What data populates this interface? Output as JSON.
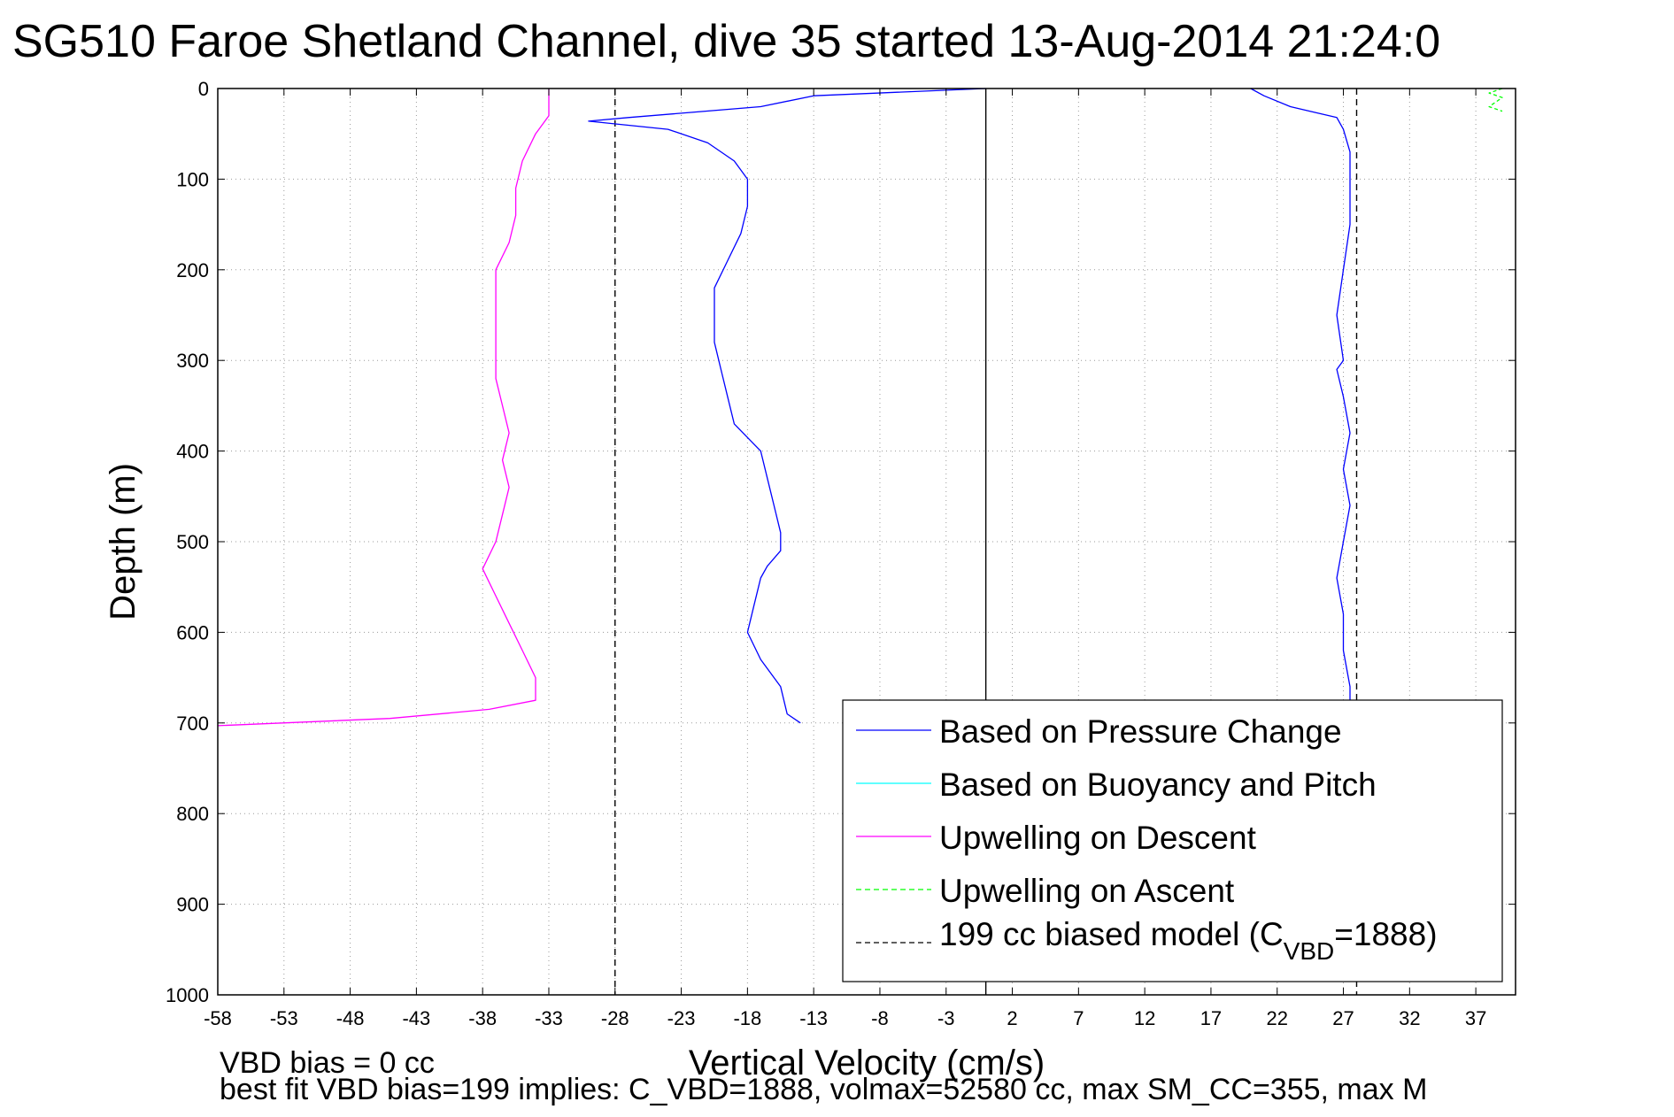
{
  "chart_data": {
    "type": "line",
    "title": "SG510 Faroe Shetland Channel, dive 35 started 13-Aug-2014 21:24:0",
    "xlabel": "Vertical Velocity (cm/s)",
    "ylabel": "Depth (m)",
    "xlim": [
      -58,
      40
    ],
    "ylim": [
      0,
      1000
    ],
    "y_reversed": true,
    "grid": true,
    "x_ticks": [
      "-58",
      "-53",
      "-48",
      "-43",
      "-38",
      "-33",
      "-28",
      "-23",
      "-18",
      "-13",
      "-8",
      "-3",
      "2",
      "7",
      "12",
      "17",
      "22",
      "27",
      "32",
      "37"
    ],
    "y_ticks": [
      "0",
      "100",
      "200",
      "300",
      "400",
      "500",
      "600",
      "700",
      "800",
      "900",
      "1000"
    ],
    "legend_position": "bottom-right",
    "legend": [
      {
        "label": "Based on Pressure Change",
        "color": "#0000ff",
        "style": "solid"
      },
      {
        "label": "Based on Buoyancy and Pitch",
        "color": "#00ffff",
        "style": "solid"
      },
      {
        "label": "Upwelling on Descent",
        "color": "#ff00ff",
        "style": "solid"
      },
      {
        "label": "Upwelling on Ascent",
        "color": "#00ff00",
        "style": "dashed"
      },
      {
        "label_main": "199 cc biased model (C",
        "label_sub": "VBD",
        "label_end": "=1888)",
        "color": "#000000",
        "style": "dashed"
      }
    ],
    "series": [
      {
        "color": "#0000ff",
        "depth": [
          0,
          8,
          20,
          32,
          36,
          45,
          60,
          80,
          100,
          130,
          160,
          190,
          220,
          250,
          280,
          310,
          340,
          370,
          400,
          430,
          460,
          490,
          510,
          527,
          540,
          570,
          600,
          630,
          660,
          690,
          700
        ],
        "values": [
          0,
          -13,
          -17,
          -27,
          -30,
          -24,
          -21,
          -19,
          -18,
          -18,
          -18.5,
          -19.5,
          -20.5,
          -20.5,
          -20.5,
          -20,
          -19.5,
          -19,
          -17,
          -16.5,
          -16,
          -15.5,
          -15.5,
          -16.5,
          -17,
          -17.5,
          -18,
          -17,
          -15.5,
          -15,
          -14
        ]
      },
      {
        "color": "#0000ff",
        "depth": [
          0,
          8,
          20,
          32,
          45,
          70,
          100,
          150,
          200,
          250,
          300,
          310,
          340,
          380,
          420,
          460,
          500,
          540,
          580,
          620,
          660,
          680
        ],
        "values": [
          20,
          21,
          23,
          26.5,
          27,
          27.5,
          27.5,
          27.5,
          27,
          26.5,
          27,
          26.5,
          27,
          27.5,
          27,
          27.5,
          27,
          26.5,
          27,
          27,
          27.5,
          27.5
        ]
      },
      {
        "color": "#ff00ff",
        "depth": [
          0,
          15,
          30,
          50,
          80,
          110,
          140,
          170,
          200,
          230,
          260,
          290,
          320,
          350,
          380,
          410,
          440,
          470,
          500,
          530,
          560,
          590,
          620,
          650,
          675,
          685,
          695,
          703
        ],
        "values": [
          -33,
          -33,
          -33,
          -34,
          -35,
          -35.5,
          -35.5,
          -36,
          -37,
          -37,
          -37,
          -37,
          -37,
          -36.5,
          -36,
          -36.5,
          -36,
          -36.5,
          -37,
          -38,
          -37,
          -36,
          -35,
          -34,
          -34,
          -37.5,
          -45,
          -58
        ]
      },
      {
        "color": "#00ff00",
        "depth": [
          0,
          5,
          10,
          15,
          20,
          25
        ],
        "values": [
          39,
          38,
          39,
          38.5,
          38,
          39
        ]
      }
    ],
    "reference_lines": [
      {
        "x": -28,
        "style": "dashed",
        "color": "#000000"
      },
      {
        "x": 28,
        "style": "dashed",
        "color": "#000000"
      },
      {
        "x": 0,
        "style": "solid",
        "color": "#000000"
      }
    ]
  },
  "notes": {
    "line1": "VBD bias = 0 cc",
    "line2": "best fit VBD bias=199 implies: C_VBD=1888, volmax=52580 cc, max SM_CC=355, max M"
  }
}
